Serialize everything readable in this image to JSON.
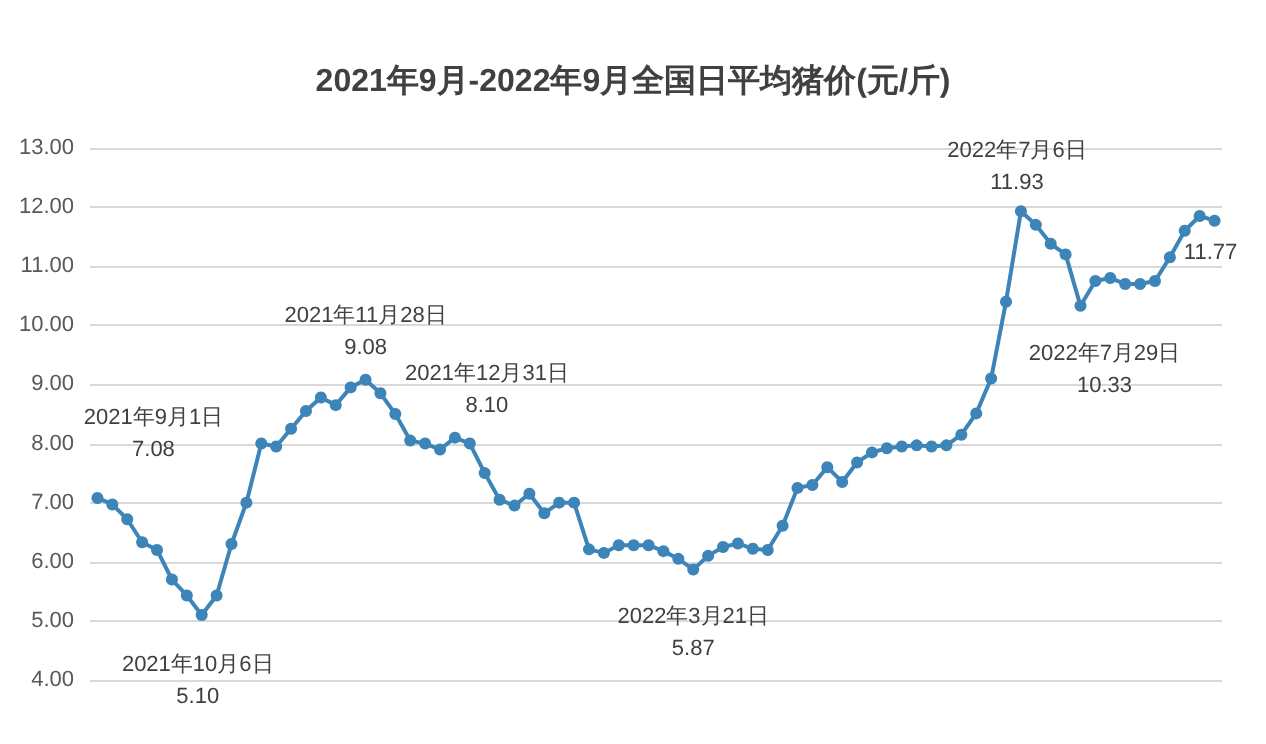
{
  "chart_data": {
    "type": "line",
    "title": "2021年9月-2022年9月全国日平均猪价(元/斤)",
    "categories": [
      null,
      null,
      null,
      null,
      null,
      null,
      null,
      null,
      null,
      null,
      null,
      null,
      null,
      null,
      null,
      null,
      null,
      null,
      null,
      null,
      null,
      null,
      null,
      null,
      null,
      null,
      null,
      null,
      null,
      null,
      null,
      null,
      null,
      null,
      null,
      null,
      null,
      null,
      null,
      null,
      null,
      null,
      null,
      null,
      null,
      null,
      null,
      null,
      null,
      null,
      null,
      null,
      null,
      null,
      null,
      null,
      null,
      null,
      null,
      null,
      null,
      null,
      null,
      null,
      null,
      null,
      null,
      null,
      null,
      null,
      null,
      null,
      null,
      null,
      null,
      null
    ],
    "series": [
      {
        "color": "#3d85b8",
        "values": [
          7.08,
          6.97,
          6.72,
          6.33,
          6.2,
          5.7,
          5.43,
          5.1,
          5.43,
          6.3,
          7.0,
          8.0,
          7.95,
          8.25,
          8.55,
          8.78,
          8.65,
          8.95,
          9.08,
          8.85,
          8.5,
          8.05,
          8.0,
          7.9,
          8.1,
          8.0,
          7.5,
          7.05,
          6.95,
          7.15,
          6.82,
          7.0,
          7.0,
          6.21,
          6.15,
          6.28,
          6.28,
          6.28,
          6.18,
          6.05,
          5.87,
          6.1,
          6.25,
          6.31,
          6.22,
          6.2,
          6.61,
          7.25,
          7.3,
          7.6,
          7.35,
          7.68,
          7.85,
          7.92,
          7.95,
          7.97,
          7.95,
          7.97,
          8.15,
          8.51,
          9.1,
          10.4,
          11.93,
          11.7,
          11.38,
          11.2,
          10.33,
          10.75,
          10.8,
          10.7,
          10.7,
          10.75,
          11.15,
          11.6,
          11.85,
          11.77
        ]
      }
    ],
    "annotations": [
      "2021年9月1日\n7.08",
      "2021年10月6日\n5.10",
      "2021年11月28日\n9.08",
      "2021年12月31日\n8.10",
      "2022年3月21日\n5.87",
      "2022年7月6日\n11.93",
      "2022年7月29日\n10.33",
      "11.77"
    ],
    "ylim": [
      4,
      13
    ],
    "yticks": [
      {
        "value": 4,
        "label": "4.00"
      },
      {
        "value": 5,
        "label": "5.00"
      },
      {
        "value": 6,
        "label": "6.00"
      },
      {
        "value": 7,
        "label": "7.00"
      },
      {
        "value": 8,
        "label": "8.00"
      },
      {
        "value": 9,
        "label": "9.00"
      },
      {
        "value": 10,
        "label": "10.00"
      },
      {
        "value": 11,
        "label": "11.00"
      },
      {
        "value": 12,
        "label": "12.00"
      },
      {
        "value": 13,
        "label": "13.00"
      }
    ],
    "tick_labels": "y",
    "grid": "y",
    "marker": "circle"
  }
}
